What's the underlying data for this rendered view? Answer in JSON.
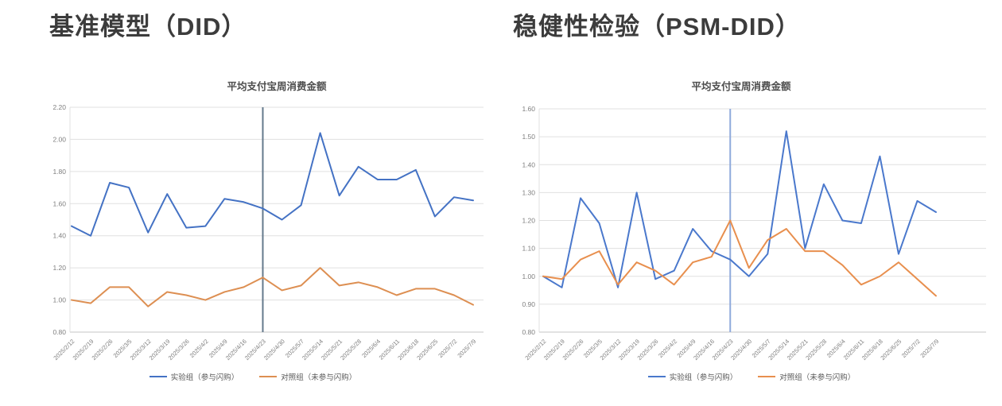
{
  "page": {
    "left_header": "基准模型（DID）",
    "right_header": "稳健性检验（PSM-DID）"
  },
  "chart_data": [
    {
      "type": "line",
      "title": "平均支付宝周消费金额",
      "categories": [
        "2025/2/12",
        "2025/2/19",
        "2025/2/26",
        "2025/3/5",
        "2025/3/12",
        "2025/3/19",
        "2025/3/26",
        "2025/4/2",
        "2025/4/9",
        "2025/4/16",
        "2025/4/23",
        "2025/4/30",
        "2025/5/7",
        "2025/5/14",
        "2025/5/21",
        "2025/5/28",
        "2025/6/4",
        "2025/6/11",
        "2025/6/18",
        "2025/6/25",
        "2025/7/2",
        "2025/7/9"
      ],
      "series": [
        {
          "name": "实验组（参与闪购）",
          "color": "#4472c4",
          "values": [
            1.46,
            1.4,
            1.73,
            1.7,
            1.42,
            1.66,
            1.45,
            1.46,
            1.63,
            1.61,
            1.57,
            1.5,
            1.59,
            2.04,
            1.65,
            1.83,
            1.75,
            1.75,
            1.81,
            1.52,
            1.64,
            1.62
          ]
        },
        {
          "name": "对照组（未参与闪购）",
          "color": "#dd8f52",
          "values": [
            1.0,
            0.98,
            1.08,
            1.08,
            0.96,
            1.05,
            1.03,
            1.0,
            1.05,
            1.08,
            1.14,
            1.06,
            1.09,
            1.2,
            1.09,
            1.11,
            1.08,
            1.03,
            1.07,
            1.07,
            1.03,
            0.97
          ]
        }
      ],
      "ylim": [
        0.8,
        2.2
      ],
      "ytick_step": 0.2,
      "grid": true,
      "legend_position": "bottom",
      "marker_line": {
        "category": "2025/4/23",
        "index": 10,
        "color": "#64798c"
      }
    },
    {
      "type": "line",
      "title": "平均支付宝周消费金额",
      "categories": [
        "2025/2/12",
        "2025/2/19",
        "2025/2/26",
        "2025/3/5",
        "2025/3/12",
        "2025/3/19",
        "2025/3/26",
        "2025/4/2",
        "2025/4/9",
        "2025/4/16",
        "2025/4/23",
        "2025/4/30",
        "2025/5/7",
        "2025/5/14",
        "2025/5/21",
        "2025/5/28",
        "2025/6/4",
        "2025/6/11",
        "2025/6/18",
        "2025/6/25",
        "2025/7/2",
        "2025/7/9"
      ],
      "series": [
        {
          "name": "实验组（参与闪购）",
          "color": "#4a78cc",
          "values": [
            1.0,
            0.96,
            1.28,
            1.19,
            0.96,
            1.3,
            0.99,
            1.02,
            1.17,
            1.09,
            1.06,
            1.0,
            1.08,
            1.52,
            1.1,
            1.33,
            1.2,
            1.19,
            1.43,
            1.08,
            1.27,
            1.23
          ]
        },
        {
          "name": "对照组（未参与闪购）",
          "color": "#e88f4e",
          "values": [
            1.0,
            0.99,
            1.06,
            1.09,
            0.97,
            1.05,
            1.02,
            0.97,
            1.05,
            1.07,
            1.2,
            1.03,
            1.13,
            1.17,
            1.09,
            1.09,
            1.04,
            0.97,
            1.0,
            1.05,
            0.99,
            0.93
          ]
        }
      ],
      "ylim": [
        0.8,
        1.6
      ],
      "ytick_step": 0.1,
      "grid": true,
      "legend_position": "bottom",
      "marker_line": {
        "category": "2025/4/23",
        "index": 10,
        "color": "#8faadc"
      }
    }
  ]
}
